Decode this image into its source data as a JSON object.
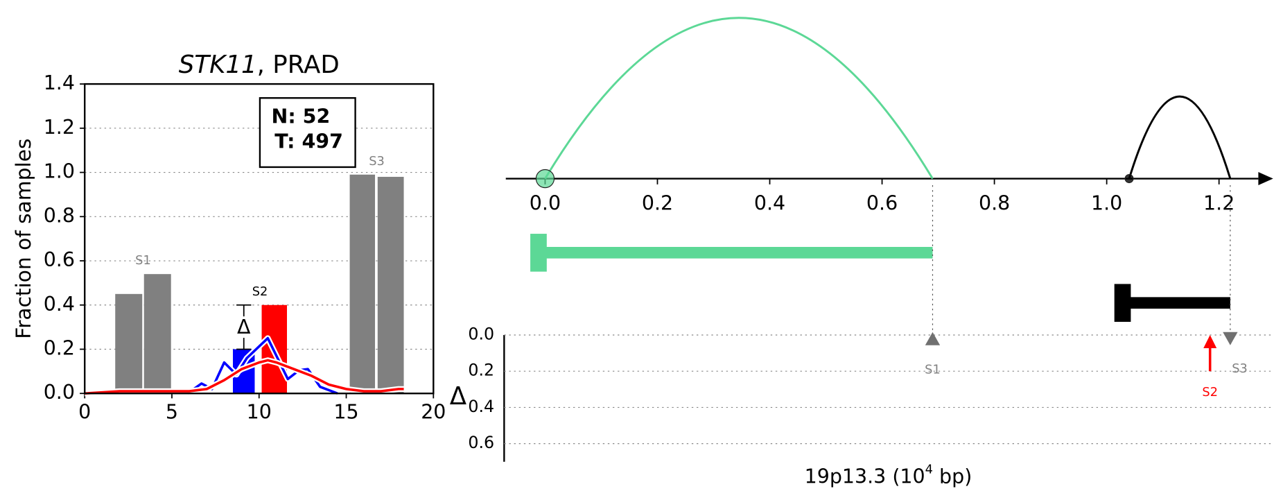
{
  "chart_data": [
    {
      "type": "bar",
      "title": [
        "STK11",
        ", PRAD"
      ],
      "ylabel": "Fraction of samples",
      "xlim": [
        0,
        20
      ],
      "ylim": [
        0,
        1.4
      ],
      "xticks": [
        0,
        5,
        10,
        15,
        20
      ],
      "yticks": [
        {
          "value": 0,
          "label": "0.0"
        },
        {
          "value": 0.2,
          "label": "0.2"
        },
        {
          "value": 0.4,
          "label": "0.4"
        },
        {
          "value": 0.6,
          "label": "0.6"
        },
        {
          "value": 0.8,
          "label": "0.8"
        },
        {
          "value": 1.0,
          "label": "1.0"
        },
        {
          "value": 1.2,
          "label": "1.2"
        },
        {
          "value": 1.4,
          "label": "1.4"
        }
      ],
      "grid": true,
      "counts": [
        "N: 52",
        "T: 497"
      ],
      "delta_symbol": "Δ",
      "groups": [
        {
          "label": "S1",
          "label_color": "#808080",
          "colors": [
            "#808080",
            "#808080"
          ],
          "x_left": [
            1.75,
            3.4
          ],
          "x_right": [
            3.3,
            4.95
          ],
          "values": [
            0.45,
            0.54
          ]
        },
        {
          "label": "S2",
          "label_color": "#000000",
          "colors": [
            "#0000ff",
            "#ff0000"
          ],
          "x_left": [
            8.5,
            10.15
          ],
          "x_right": [
            9.75,
            11.6
          ],
          "values": [
            0.2,
            0.4
          ]
        },
        {
          "label": "S3",
          "label_color": "#808080",
          "colors": [
            "#808080",
            "#808080"
          ],
          "x_left": [
            15.2,
            16.8
          ],
          "x_right": [
            16.65,
            18.3
          ],
          "values": [
            0.99,
            0.98
          ]
        }
      ],
      "series": [
        {
          "color": "#0000ff",
          "x": [
            5.9,
            6.7,
            7.3,
            8.0,
            8.7,
            9.3,
            10.5,
            11.65,
            12.3,
            12.8,
            13.5,
            14.5
          ],
          "values": [
            0.0,
            0.045,
            0.02,
            0.14,
            0.085,
            0.16,
            0.25,
            0.065,
            0.105,
            0.11,
            0.03,
            0.0
          ]
        },
        {
          "color": "#ff0000",
          "x": [
            0,
            1,
            2,
            3,
            4,
            5,
            6,
            7,
            8,
            9,
            10,
            10.5,
            11,
            12,
            13,
            14,
            15,
            16,
            17,
            18,
            18.3
          ],
          "values": [
            0,
            0.005,
            0.01,
            0.01,
            0.01,
            0.01,
            0.01,
            0.02,
            0.06,
            0.11,
            0.14,
            0.15,
            0.14,
            0.11,
            0.08,
            0.04,
            0.02,
            0.01,
            0.01,
            0.02,
            0.02
          ]
        }
      ]
    },
    {
      "type": "genome",
      "xlim": [
        -0.07,
        1.27
      ],
      "xticks": [
        {
          "value": 0,
          "label": "0.0"
        },
        {
          "value": 0.2,
          "label": "0.2"
        },
        {
          "value": 0.4,
          "label": "0.4"
        },
        {
          "value": 0.6,
          "label": "0.6"
        },
        {
          "value": 0.8,
          "label": "0.8"
        },
        {
          "value": 1.0,
          "label": "1.0"
        },
        {
          "value": 1.2,
          "label": "1.2"
        }
      ],
      "xlabel": [
        "19p13.3 (10",
        "4",
        " bp)"
      ],
      "arcs": [
        {
          "start": 0,
          "end": 0.69,
          "color": "#5cd896"
        },
        {
          "start": 1.04,
          "end": 1.22,
          "color": "#000000"
        }
      ],
      "genes": [
        {
          "start": 0,
          "end": 0.69,
          "color": "#5cd896"
        },
        {
          "start": 1.04,
          "end": 1.22,
          "color": "#000000"
        }
      ],
      "ylabel": "Δ",
      "ylim": [
        0,
        0.7
      ],
      "yticks": [
        {
          "value": 0,
          "label": "0.0"
        },
        {
          "value": 0.2,
          "label": "0.2"
        },
        {
          "value": 0.4,
          "label": "0.4"
        },
        {
          "value": 0.6,
          "label": "0.6"
        }
      ],
      "markers": [
        {
          "label": "S1",
          "x": 0.69,
          "value": 0.02,
          "shape": "up",
          "color": "#707070"
        },
        {
          "label": "S2",
          "x": 1.184,
          "value": 0.2,
          "shape": "arrow",
          "color": "#ff0000"
        },
        {
          "label": "S3",
          "x": 1.22,
          "value": 0.02,
          "shape": "down",
          "color": "#707070"
        }
      ]
    }
  ]
}
